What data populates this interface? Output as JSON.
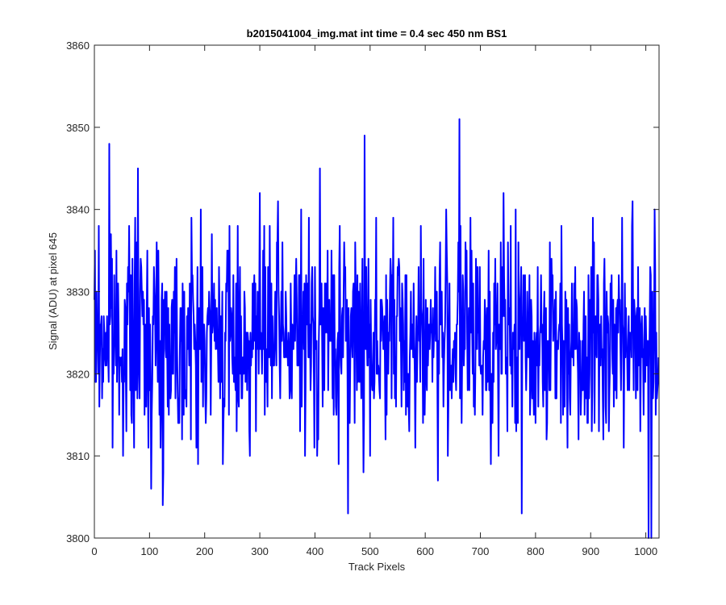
{
  "chart_data": {
    "type": "line",
    "title": "b2015041004_img.mat int time = 0.4 sec  450 nm BS1",
    "xlabel": "Track Pixels",
    "ylabel": "Signal (ADU) at pixel 645",
    "xlim": [
      0,
      1024
    ],
    "ylim": [
      3800,
      3860
    ],
    "xticks": [
      0,
      100,
      200,
      300,
      400,
      500,
      600,
      700,
      800,
      900,
      1000
    ],
    "yticks": [
      3800,
      3810,
      3820,
      3830,
      3840,
      3850,
      3860
    ],
    "grid": false,
    "legend": "none",
    "series": [
      {
        "color": "#0000ff",
        "noise": {
          "n_points": 1024,
          "mean": 3824.5,
          "typical_min": 3806,
          "typical_max": 3845,
          "extremes": [
            {
              "x": 27,
              "y": 3848
            },
            {
              "x": 79,
              "y": 3845
            },
            {
              "x": 124,
              "y": 3804
            },
            {
              "x": 409,
              "y": 3845
            },
            {
              "x": 460,
              "y": 3803
            },
            {
              "x": 490,
              "y": 3849
            },
            {
              "x": 662,
              "y": 3851
            },
            {
              "x": 775,
              "y": 3803
            },
            {
              "x": 1005,
              "y": 3800
            },
            {
              "x": 1010,
              "y": 3800
            },
            {
              "x": 1016,
              "y": 3840
            }
          ]
        }
      }
    ]
  }
}
